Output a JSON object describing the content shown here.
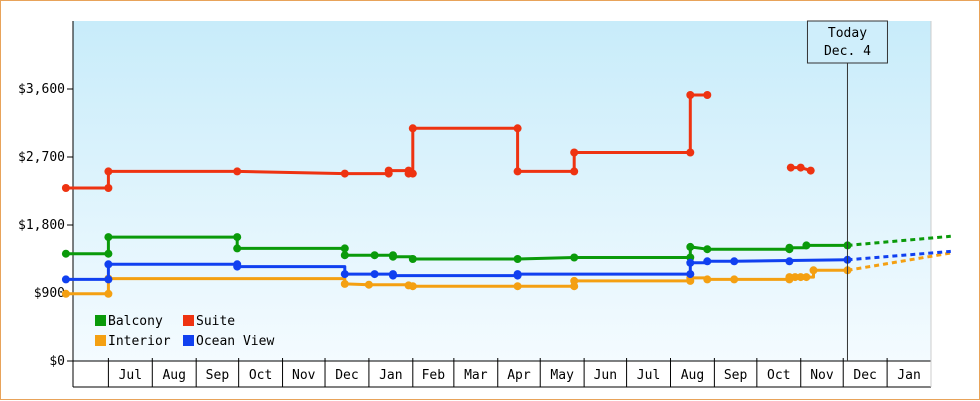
{
  "chart_data": {
    "type": "line",
    "ylim": [
      0,
      4500
    ],
    "y_ticks": [
      {
        "value": 0,
        "label": "$0"
      },
      {
        "value": 900,
        "label": "$900"
      },
      {
        "value": 1800,
        "label": "$1,800"
      },
      {
        "value": 2700,
        "label": "$2,700"
      },
      {
        "value": 3600,
        "label": "$3,600"
      }
    ],
    "x_start": "2015-06-06",
    "x_end": "2016-02-15",
    "months": [
      {
        "label": "Jul",
        "start": "2015-07-01",
        "end": "2015-08-01"
      },
      {
        "label": "Aug",
        "start": "2015-08-01",
        "end": "2015-09-01"
      },
      {
        "label": "Sep",
        "start": "2015-09-01",
        "end": "2015-10-01"
      },
      {
        "label": "Oct",
        "start": "2015-10-01",
        "end": "2015-11-01"
      },
      {
        "label": "Nov",
        "start": "2015-11-01",
        "end": "2015-12-01"
      },
      {
        "label": "Dec",
        "start": "2015-12-01",
        "end": "2016-01-01"
      },
      {
        "label": "Jan",
        "start": "2016-01-01",
        "end": "2016-02-01"
      },
      {
        "label": "Feb",
        "start": "2016-02-01",
        "end": "2016-03-01"
      },
      {
        "label": "Mar",
        "start": "2016-03-01",
        "end": "2016-04-01"
      },
      {
        "label": "Apr",
        "start": "2016-04-01",
        "end": "2016-05-01"
      },
      {
        "label": "May",
        "start": "2016-05-01",
        "end": "2016-06-01"
      },
      {
        "label": "Jun",
        "start": "2016-06-01",
        "end": "2016-07-01"
      },
      {
        "label": "Jul",
        "start": "2016-07-01",
        "end": "2016-08-01"
      },
      {
        "label": "Aug",
        "start": "2016-08-01",
        "end": "2016-09-01"
      },
      {
        "label": "Sep",
        "start": "2016-09-01",
        "end": "2016-10-01"
      },
      {
        "label": "Oct",
        "start": "2016-10-01",
        "end": "2016-11-01"
      },
      {
        "label": "Nov",
        "start": "2016-11-01",
        "end": "2016-12-01"
      },
      {
        "label": "Dec",
        "start": "2016-12-01",
        "end": "2017-01-01"
      },
      {
        "label": "Jan",
        "start": "2017-01-01",
        "end": "2017-02-01"
      }
    ],
    "today": {
      "label_line1": "Today",
      "label_line2": "Dec. 4",
      "date": "2016-12-04"
    },
    "legend": {
      "placement": "bottom-left"
    },
    "background": {
      "top_color": "#c8ecfa",
      "bottom_color": "#f4fbff"
    },
    "series": [
      {
        "name": "Balcony",
        "color": "#0a9a0a",
        "points": [
          [
            "2015-06-01",
            1420
          ],
          [
            "2015-07-01",
            1420
          ],
          [
            "2015-07-01",
            1640
          ],
          [
            "2015-09-30",
            1640
          ],
          [
            "2015-09-30",
            1490
          ],
          [
            "2015-12-15",
            1490
          ],
          [
            "2015-12-15",
            1400
          ],
          [
            "2016-01-05",
            1400
          ],
          [
            "2016-01-18",
            1400
          ],
          [
            "2016-01-18",
            1380
          ],
          [
            "2016-02-01",
            1380
          ],
          [
            "2016-02-01",
            1350
          ],
          [
            "2016-04-15",
            1350
          ],
          [
            "2016-05-25",
            1370
          ],
          [
            "2016-08-15",
            1370
          ],
          [
            "2016-08-15",
            1510
          ],
          [
            "2016-08-27",
            1480
          ],
          [
            "2016-10-24",
            1480
          ],
          [
            "2016-10-24",
            1500
          ],
          [
            "2016-11-05",
            1500
          ],
          [
            "2016-11-05",
            1530
          ],
          [
            "2016-12-04",
            1530
          ]
        ],
        "markers": [
          [
            "2015-06-01",
            1420
          ],
          [
            "2015-07-01",
            1420
          ],
          [
            "2015-07-01",
            1640
          ],
          [
            "2015-09-30",
            1640
          ],
          [
            "2015-09-30",
            1490
          ],
          [
            "2015-12-15",
            1490
          ],
          [
            "2015-12-15",
            1400
          ],
          [
            "2016-01-05",
            1400
          ],
          [
            "2016-01-18",
            1400
          ],
          [
            "2016-01-18",
            1380
          ],
          [
            "2016-02-01",
            1350
          ],
          [
            "2016-04-15",
            1350
          ],
          [
            "2016-05-25",
            1370
          ],
          [
            "2016-08-15",
            1370
          ],
          [
            "2016-08-15",
            1510
          ],
          [
            "2016-08-27",
            1480
          ],
          [
            "2016-10-24",
            1480
          ],
          [
            "2016-10-24",
            1500
          ],
          [
            "2016-11-05",
            1530
          ],
          [
            "2016-12-04",
            1530
          ]
        ],
        "forecast": [
          [
            "2016-12-04",
            1530
          ],
          [
            "2017-02-15",
            1650
          ]
        ]
      },
      {
        "name": "Suite",
        "color": "#ee3311",
        "segments": [
          [
            [
              "2015-06-01",
              2290
            ],
            [
              "2015-07-01",
              2290
            ],
            [
              "2015-07-01",
              2510
            ],
            [
              "2015-09-30",
              2510
            ],
            [
              "2015-12-15",
              2480
            ],
            [
              "2016-01-15",
              2480
            ],
            [
              "2016-01-15",
              2520
            ],
            [
              "2016-01-29",
              2520
            ],
            [
              "2016-01-29",
              2480
            ],
            [
              "2016-02-01",
              2480
            ],
            [
              "2016-02-01",
              3080
            ],
            [
              "2016-04-15",
              3080
            ],
            [
              "2016-04-15",
              2510
            ],
            [
              "2016-05-25",
              2510
            ],
            [
              "2016-05-25",
              2760
            ],
            [
              "2016-08-15",
              2760
            ],
            [
              "2016-08-15",
              3520
            ],
            [
              "2016-08-27",
              3520
            ]
          ],
          [
            [
              "2016-10-25",
              2560
            ],
            [
              "2016-11-01",
              2560
            ],
            [
              "2016-11-08",
              2520
            ]
          ]
        ],
        "markers": [
          [
            "2015-06-01",
            2290
          ],
          [
            "2015-07-01",
            2290
          ],
          [
            "2015-07-01",
            2510
          ],
          [
            "2015-09-30",
            2510
          ],
          [
            "2015-12-15",
            2480
          ],
          [
            "2016-01-15",
            2480
          ],
          [
            "2016-01-15",
            2520
          ],
          [
            "2016-01-29",
            2520
          ],
          [
            "2016-01-29",
            2480
          ],
          [
            "2016-02-01",
            2480
          ],
          [
            "2016-02-01",
            3080
          ],
          [
            "2016-04-15",
            3080
          ],
          [
            "2016-04-15",
            2510
          ],
          [
            "2016-05-25",
            2510
          ],
          [
            "2016-05-25",
            2760
          ],
          [
            "2016-08-15",
            2760
          ],
          [
            "2016-08-15",
            3520
          ],
          [
            "2016-08-27",
            3520
          ],
          [
            "2016-10-25",
            2560
          ],
          [
            "2016-11-01",
            2560
          ],
          [
            "2016-11-08",
            2520
          ]
        ]
      },
      {
        "name": "Interior",
        "color": "#f4a012",
        "segments": [
          [
            [
              "2015-06-01",
              890
            ],
            [
              "2015-07-01",
              890
            ],
            [
              "2015-07-01",
              1090
            ],
            [
              "2015-12-15",
              1090
            ],
            [
              "2015-12-15",
              1020
            ],
            [
              "2016-01-01",
              1010
            ],
            [
              "2016-01-29",
              1010
            ],
            [
              "2016-01-29",
              990
            ],
            [
              "2016-02-01",
              990
            ],
            [
              "2016-04-15",
              990
            ],
            [
              "2016-05-25",
              990
            ],
            [
              "2016-05-25",
              1060
            ],
            [
              "2016-08-15",
              1060
            ],
            [
              "2016-08-15",
              1100
            ],
            [
              "2016-08-27",
              1100
            ],
            [
              "2016-08-27",
              1080
            ],
            [
              "2016-09-15",
              1080
            ],
            [
              "2016-10-24",
              1080
            ],
            [
              "2016-10-24",
              1110
            ],
            [
              "2016-11-10",
              1110
            ],
            [
              "2016-11-10",
              1200
            ],
            [
              "2016-12-04",
              1200
            ]
          ]
        ],
        "markers": [
          [
            "2015-06-01",
            890
          ],
          [
            "2015-07-01",
            890
          ],
          [
            "2015-07-01",
            1090
          ],
          [
            "2015-12-15",
            1020
          ],
          [
            "2016-01-01",
            1010
          ],
          [
            "2016-01-29",
            1000
          ],
          [
            "2016-02-01",
            990
          ],
          [
            "2016-04-15",
            990
          ],
          [
            "2016-05-25",
            990
          ],
          [
            "2016-05-25",
            1060
          ],
          [
            "2016-08-15",
            1060
          ],
          [
            "2016-08-15",
            1100
          ],
          [
            "2016-08-27",
            1080
          ],
          [
            "2016-09-15",
            1080
          ],
          [
            "2016-10-24",
            1080
          ],
          [
            "2016-10-24",
            1110
          ],
          [
            "2016-10-28",
            1110
          ],
          [
            "2016-11-01",
            1110
          ],
          [
            "2016-11-05",
            1110
          ],
          [
            "2016-11-10",
            1200
          ],
          [
            "2016-12-04",
            1200
          ]
        ],
        "forecast": [
          [
            "2016-12-04",
            1200
          ],
          [
            "2017-02-15",
            1430
          ]
        ]
      },
      {
        "name": "Ocean View",
        "color": "#1040f0",
        "points": [
          [
            "2015-06-01",
            1080
          ],
          [
            "2015-07-01",
            1080
          ],
          [
            "2015-07-01",
            1280
          ],
          [
            "2015-09-30",
            1280
          ],
          [
            "2015-09-30",
            1250
          ],
          [
            "2015-12-15",
            1250
          ],
          [
            "2015-12-15",
            1150
          ],
          [
            "2016-01-05",
            1150
          ],
          [
            "2016-01-18",
            1150
          ],
          [
            "2016-01-18",
            1130
          ],
          [
            "2016-04-15",
            1130
          ],
          [
            "2016-04-15",
            1150
          ],
          [
            "2016-08-15",
            1150
          ],
          [
            "2016-08-15",
            1300
          ],
          [
            "2016-08-27",
            1300
          ],
          [
            "2016-08-27",
            1320
          ],
          [
            "2016-09-15",
            1320
          ],
          [
            "2016-12-04",
            1340
          ]
        ],
        "markers": [
          [
            "2015-06-01",
            1080
          ],
          [
            "2015-07-01",
            1080
          ],
          [
            "2015-07-01",
            1280
          ],
          [
            "2015-09-30",
            1280
          ],
          [
            "2015-09-30",
            1250
          ],
          [
            "2015-12-15",
            1150
          ],
          [
            "2016-01-05",
            1150
          ],
          [
            "2016-01-18",
            1150
          ],
          [
            "2016-01-18",
            1130
          ],
          [
            "2016-04-15",
            1130
          ],
          [
            "2016-04-15",
            1150
          ],
          [
            "2016-08-15",
            1150
          ],
          [
            "2016-08-15",
            1300
          ],
          [
            "2016-08-27",
            1320
          ],
          [
            "2016-09-15",
            1320
          ],
          [
            "2016-10-24",
            1320
          ],
          [
            "2016-12-04",
            1340
          ]
        ],
        "forecast": [
          [
            "2016-12-04",
            1340
          ],
          [
            "2017-02-15",
            1450
          ]
        ]
      }
    ]
  }
}
